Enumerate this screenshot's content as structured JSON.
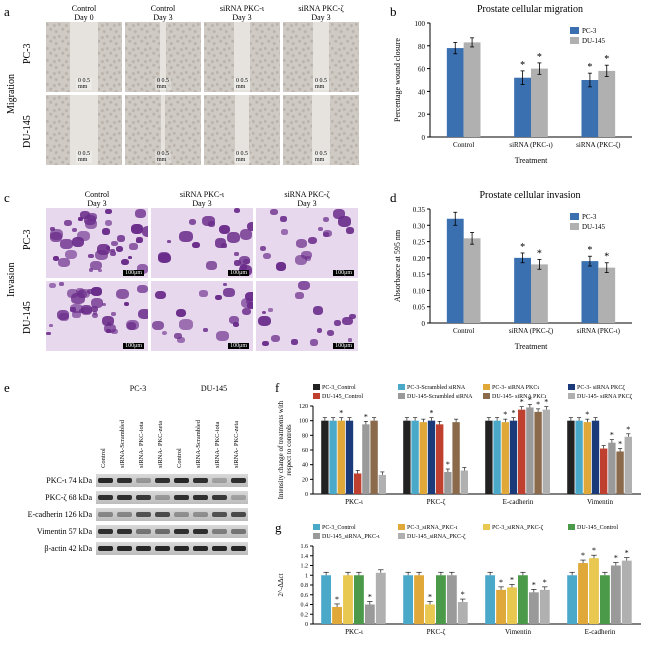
{
  "colors": {
    "pc3": "#3a6fb0",
    "du145": "#b0b0b0",
    "black": "#222222",
    "red": "#c04030",
    "grey": "#9a9a9a",
    "teal": "#4aa8c8",
    "orange": "#e0a838",
    "navy": "#1a3a7a",
    "brown": "#8a6a4a",
    "yellow": "#e8c850",
    "green": "#4a9a4a"
  },
  "panel_labels": {
    "a": "a",
    "b": "b",
    "c": "c",
    "d": "d",
    "e": "e",
    "f": "f",
    "g": "g"
  },
  "panel_a": {
    "side_label": "Migration",
    "row_labels": [
      "PC-3",
      "DU-145"
    ],
    "col_heads": [
      "Control\nDay 0",
      "Control\nDay 3",
      "siRNA PKC-ι\nDay 3",
      "siRNA PKC-ζ\nDay 3"
    ],
    "wound_percent_width": [
      38,
      8,
      22,
      20,
      38,
      6,
      18,
      24
    ],
    "scale_text": "0   0.5\nmm"
  },
  "panel_b": {
    "title": "Prostate cellular migration",
    "ylabel": "Percentage wound closure",
    "xlabel": "Treatment",
    "legend": [
      "PC-3",
      "DU-145"
    ],
    "legend_colors": [
      "pc3",
      "du145"
    ],
    "categories": [
      "Control",
      "siRNA (PKC-ι)",
      "siRNA (PKC-ζ)"
    ],
    "pc3": [
      78,
      52,
      50
    ],
    "du145": [
      83,
      60,
      58
    ],
    "pc3_err": [
      5,
      6,
      6
    ],
    "du145_err": [
      4,
      5,
      5
    ],
    "sig": [
      [
        false,
        false
      ],
      [
        true,
        true
      ],
      [
        true,
        true
      ]
    ],
    "ylim": [
      0,
      100
    ],
    "ytick_step": 20
  },
  "panel_c": {
    "side_label": "Invasion",
    "row_labels": [
      "PC-3",
      "DU-145"
    ],
    "col_heads": [
      "Control\nDay 3",
      "siRNA PKC-ι\nDay 3",
      "siRNA PKC-ζ\nDay 3"
    ],
    "density": [
      1.0,
      0.55,
      0.45,
      0.9,
      0.5,
      0.4
    ],
    "scale_text": "100μm"
  },
  "panel_d": {
    "title": "Prostate cellular invasion",
    "ylabel": "Absorbance at 595 nm",
    "xlabel": "Treatment",
    "legend": [
      "PC-3",
      "DU-145"
    ],
    "legend_colors": [
      "pc3",
      "du145"
    ],
    "categories": [
      "Control",
      "siRNA (PKC-ζ)",
      "siRNA (PKC-ι)"
    ],
    "pc3": [
      0.32,
      0.2,
      0.19
    ],
    "du145": [
      0.26,
      0.18,
      0.17
    ],
    "pc3_err": [
      0.02,
      0.015,
      0.015
    ],
    "du145_err": [
      0.018,
      0.015,
      0.015
    ],
    "sig": [
      [
        false,
        false
      ],
      [
        true,
        true
      ],
      [
        true,
        true
      ]
    ],
    "ylim": [
      0,
      0.35
    ],
    "ytick_step": 0.05
  },
  "panel_e": {
    "groups": [
      "PC-3",
      "DU-145"
    ],
    "lanes": [
      "Control",
      "siRNA-Scrambled",
      "siRNA- PKC-iota",
      "siRNA- PKC-zeta",
      "Control",
      "siRNA-Scrambled",
      "siRNA- PKC-iota",
      "siRNA- PKC-zeta"
    ],
    "rows": [
      {
        "label": "PKC-ι  74 kDa",
        "intensity": [
          0.95,
          0.9,
          0.3,
          0.9,
          0.95,
          0.9,
          0.25,
          0.9
        ]
      },
      {
        "label": "PKC-ζ  68 kDa",
        "intensity": [
          0.9,
          0.9,
          0.85,
          0.3,
          0.9,
          0.9,
          0.85,
          0.25
        ]
      },
      {
        "label": "E-cadherin  126 kDa",
        "intensity": [
          0.4,
          0.4,
          0.7,
          0.75,
          0.35,
          0.35,
          0.7,
          0.75
        ]
      },
      {
        "label": "Vimentin  57 kDa",
        "intensity": [
          0.9,
          0.9,
          0.5,
          0.55,
          0.9,
          0.9,
          0.45,
          0.5
        ]
      },
      {
        "label": "β-actin  42 kDa",
        "intensity": [
          0.95,
          0.95,
          0.95,
          0.95,
          0.95,
          0.95,
          0.95,
          0.95
        ]
      }
    ]
  },
  "panel_f": {
    "ylabel": "Intensity change of treatments with\nrespect to controls",
    "legend": [
      {
        "label": "PC-3_Control",
        "color": "black"
      },
      {
        "label": "PC-3-Scrambled siRNA",
        "color": "teal"
      },
      {
        "label": "PC-3- siRNA PKCι",
        "color": "orange"
      },
      {
        "label": "PC-3- siRNA PKCζ",
        "color": "navy"
      },
      {
        "label": "DU-145_Control",
        "color": "red"
      },
      {
        "label": "DU-145-Scrambled siRNA",
        "color": "grey"
      },
      {
        "label": "DU-145- siRNA PKCι",
        "color": "brown"
      },
      {
        "label": "DU-145- siRNA PKCζ",
        "color": "du145"
      }
    ],
    "categories": [
      "PKC-ι",
      "PKC-ζ",
      "E-cadherin",
      "Vimentin"
    ],
    "values": [
      [
        100,
        100,
        100,
        100,
        28,
        95,
        100,
        26
      ],
      [
        100,
        100,
        98,
        100,
        95,
        30,
        98,
        32
      ],
      [
        100,
        100,
        98,
        100,
        115,
        118,
        112,
        115
      ],
      [
        100,
        100,
        98,
        100,
        62,
        70,
        58,
        78
      ]
    ],
    "sig_cols": [
      [
        2,
        5
      ],
      [
        3,
        5
      ],
      [
        2,
        3,
        4,
        5,
        6,
        7
      ],
      [
        2,
        5,
        6,
        7
      ]
    ],
    "ylim": [
      0,
      120
    ],
    "ytick_step": 20
  },
  "panel_g": {
    "ylabel": "2^-ΔΔct",
    "legend": [
      {
        "label": "PC-3_Control",
        "color": "teal"
      },
      {
        "label": "PC-3_siRNA_PKC-ι",
        "color": "orange"
      },
      {
        "label": "PC-3_siRNA_PKC-ζ",
        "color": "yellow"
      },
      {
        "label": "DU-145_Control",
        "color": "green"
      },
      {
        "label": "DU-145_siRNA_PKC-ι",
        "color": "grey"
      },
      {
        "label": "DU-145_siRNA_PKC-ζ",
        "color": "du145"
      }
    ],
    "categories": [
      "PKC-ι",
      "PKC-ζ",
      "Vimentin",
      "E-cadherin"
    ],
    "values": [
      [
        1.0,
        0.35,
        1.0,
        1.0,
        0.4,
        1.05
      ],
      [
        1.0,
        1.0,
        0.4,
        1.0,
        1.0,
        0.45
      ],
      [
        1.0,
        0.7,
        0.75,
        1.0,
        0.65,
        0.7
      ],
      [
        1.0,
        1.25,
        1.35,
        1.0,
        1.2,
        1.3
      ]
    ],
    "sig_cols": [
      [
        1,
        4
      ],
      [
        2,
        5
      ],
      [
        1,
        2,
        4,
        5
      ],
      [
        1,
        2,
        4,
        5
      ]
    ],
    "ylim": [
      0,
      1.6
    ],
    "ytick_step": 0.2
  }
}
